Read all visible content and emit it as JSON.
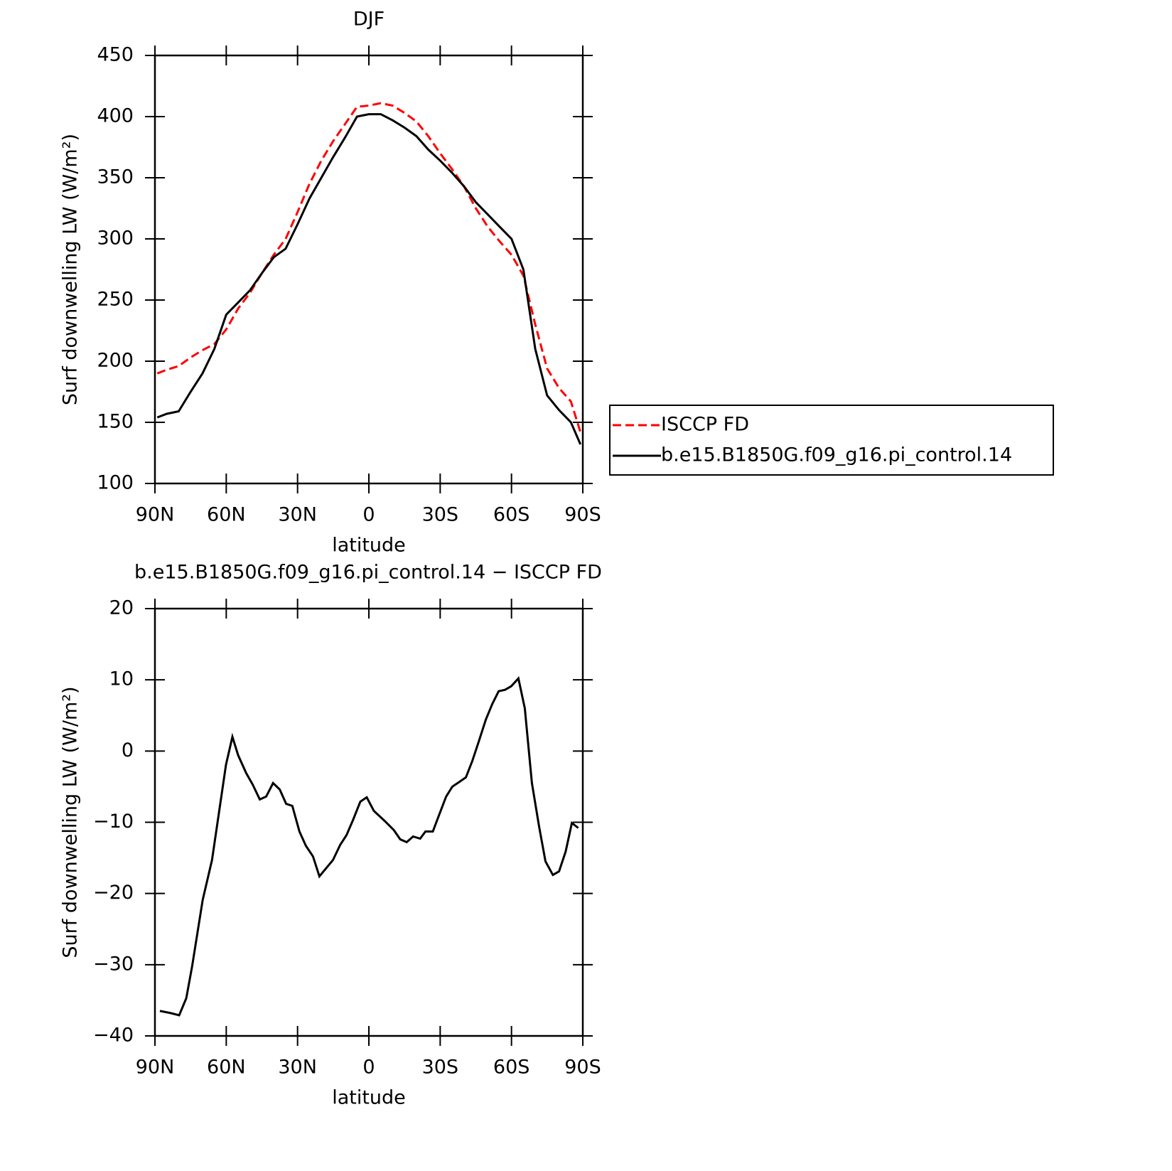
{
  "chart_data": [
    {
      "type": "line",
      "title": "DJF",
      "xlabel": "latitude",
      "ylabel": "Surf downwelling LW (W/m²)",
      "x": [
        89,
        85,
        80,
        75,
        70,
        65,
        60,
        55,
        50,
        45,
        40,
        35,
        30,
        25,
        20,
        15,
        10,
        5,
        0,
        -5,
        -10,
        -15,
        -20,
        -25,
        -30,
        -35,
        -40,
        -45,
        -50,
        -55,
        -60,
        -65,
        -70,
        -75,
        -80,
        -85,
        -89
      ],
      "series": [
        {
          "name": "ISCCP FD",
          "color": "#ff0000",
          "dash": "dashed",
          "values": [
            190,
            193,
            196,
            203,
            209,
            214,
            226,
            243,
            256,
            272,
            287,
            300,
            322,
            345,
            364,
            380,
            394,
            408,
            409,
            411,
            409,
            403,
            396,
            384,
            370,
            357,
            343,
            325,
            310,
            298,
            287,
            270,
            230,
            194,
            178,
            167,
            142
          ]
        },
        {
          "name": "b.e15.B1850G.f09_g16.pi_control.14",
          "color": "#000000",
          "dash": "solid",
          "values": [
            154,
            157,
            159,
            175,
            190,
            210,
            238,
            248,
            258,
            272,
            285,
            292,
            312,
            333,
            350,
            367,
            383,
            400,
            402,
            402,
            397,
            391,
            384,
            373,
            364,
            354,
            343,
            330,
            320,
            310,
            300,
            275,
            210,
            172,
            160,
            150,
            132
          ]
        }
      ],
      "xlim": [
        90,
        -90
      ],
      "xticks": [
        {
          "value": 90,
          "label": "90N"
        },
        {
          "value": 60,
          "label": "60N"
        },
        {
          "value": 30,
          "label": "30N"
        },
        0,
        {
          "value": -30,
          "label": "30S"
        },
        {
          "value": -60,
          "label": "60S"
        },
        {
          "value": -90,
          "label": "90S"
        }
      ],
      "ylim": [
        100,
        450
      ],
      "yticks": [
        100,
        150,
        200,
        250,
        300,
        350,
        400,
        450
      ],
      "legend": "right"
    },
    {
      "type": "line",
      "title": "b.e15.B1850G.f09_g16.pi_control.14 − ISCCP FD",
      "xlabel": "latitude",
      "ylabel": "Surf downwelling LW (W/m²)",
      "x": [
        87.9,
        83.4,
        79.8,
        76.8,
        74.4,
        69.9,
        66.0,
        60.1,
        57.4,
        55.0,
        51.6,
        48.9,
        45.9,
        43.2,
        40.3,
        37.5,
        34.8,
        32.2,
        29.2,
        26.5,
        23.5,
        20.8,
        15.1,
        12.1,
        9.4,
        6.7,
        3.6,
        0.9,
        -2.1,
        -6.6,
        -10.5,
        -13.2,
        -15.9,
        -18.6,
        -21.6,
        -23.8,
        -26.9,
        -29.5,
        -32.5,
        -35.1,
        -37.8,
        -40.8,
        -43.5,
        -46.2,
        -49.2,
        -51.9,
        -54.6,
        -57.3,
        -59.9,
        -62.9,
        -65.6,
        -68.6,
        -71.6,
        -74.3,
        -77.4,
        -80.0,
        -82.8,
        -85.4,
        -88.1
      ],
      "series": [
        {
          "color": "#000000",
          "dash": "solid",
          "values": [
            -36.5,
            -36.8,
            -37.1,
            -34.7,
            -30.3,
            -20.9,
            -15.3,
            -1.9,
            2.0,
            -0.6,
            -3.1,
            -4.7,
            -6.8,
            -6.4,
            -4.5,
            -5.4,
            -7.4,
            -7.7,
            -11.3,
            -13.3,
            -14.8,
            -17.6,
            -15.3,
            -13.2,
            -11.8,
            -9.7,
            -7.1,
            -6.5,
            -8.4,
            -9.8,
            -11.1,
            -12.4,
            -12.8,
            -12.0,
            -12.3,
            -11.3,
            -11.3,
            -9.0,
            -6.4,
            -5.0,
            -4.4,
            -3.7,
            -1.4,
            1.3,
            4.4,
            6.6,
            8.4,
            8.6,
            9.1,
            10.2,
            6.0,
            -4.5,
            -10.6,
            -15.5,
            -17.4,
            -16.9,
            -14.1,
            -10.1,
            -10.8
          ]
        }
      ],
      "xlim": [
        90,
        -90
      ],
      "xticks": [
        {
          "value": 90,
          "label": "90N"
        },
        {
          "value": 60,
          "label": "60N"
        },
        {
          "value": 30,
          "label": "30N"
        },
        0,
        {
          "value": -30,
          "label": "30S"
        },
        {
          "value": -60,
          "label": "60S"
        },
        {
          "value": -90,
          "label": "90S"
        }
      ],
      "ylim": [
        -40,
        20
      ],
      "yticks": [
        {
          "value": -40,
          "label": "−40"
        },
        {
          "value": -30,
          "label": "−30"
        },
        {
          "value": -20,
          "label": "−20"
        },
        {
          "value": -10,
          "label": "−10"
        },
        0,
        10,
        20
      ]
    }
  ]
}
